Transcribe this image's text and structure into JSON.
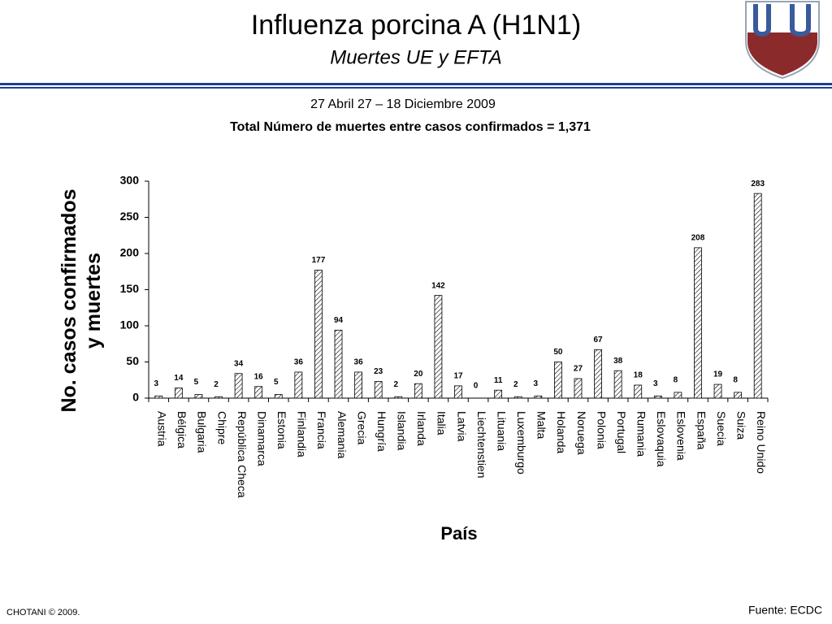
{
  "chart_data": {
    "type": "bar",
    "title": "Influenza porcina A (H1N1)",
    "subtitle": "Muertes UE y EFTA",
    "period": "27 Abril 27 – 18 Diciembre 2009",
    "total_note": "Total Número de muertes entre casos confirmados = 1,371",
    "y_label": "No. casos confirmados y muertes",
    "x_label": "País",
    "categories": [
      "Austria",
      "Bélgica",
      "Bulgaria",
      "Chipre",
      "República Checa",
      "Dinamarca",
      "Estonia",
      "Finlandia",
      "Francia",
      "Alemania",
      "Grecia",
      "Hungría",
      "Islandia",
      "Irlanda",
      "Italia",
      "Latvia",
      "Liechtenstien",
      "Lituania",
      "Luxemburgo",
      "Malta",
      "Holanda",
      "Noruega",
      "Polonia",
      "Portugal",
      "Rumania",
      "Eslovaquia",
      "Eslovenia",
      "España",
      "Suecia",
      "Suiza",
      "Reino Unido"
    ],
    "values": [
      3,
      14,
      5,
      2,
      34,
      16,
      5,
      36,
      177,
      94,
      36,
      23,
      2,
      20,
      142,
      17,
      0,
      11,
      2,
      3,
      50,
      27,
      67,
      38,
      18,
      3,
      8,
      208,
      19,
      8,
      283
    ],
    "color": "#000000",
    "ylim": [
      0,
      300
    ],
    "yticks": [
      0,
      50,
      100,
      150,
      200,
      250,
      300
    ],
    "grid": false
  },
  "footer": {
    "copyright": "CHOTANI © 2009.",
    "source": "Fuente: ECDC"
  }
}
